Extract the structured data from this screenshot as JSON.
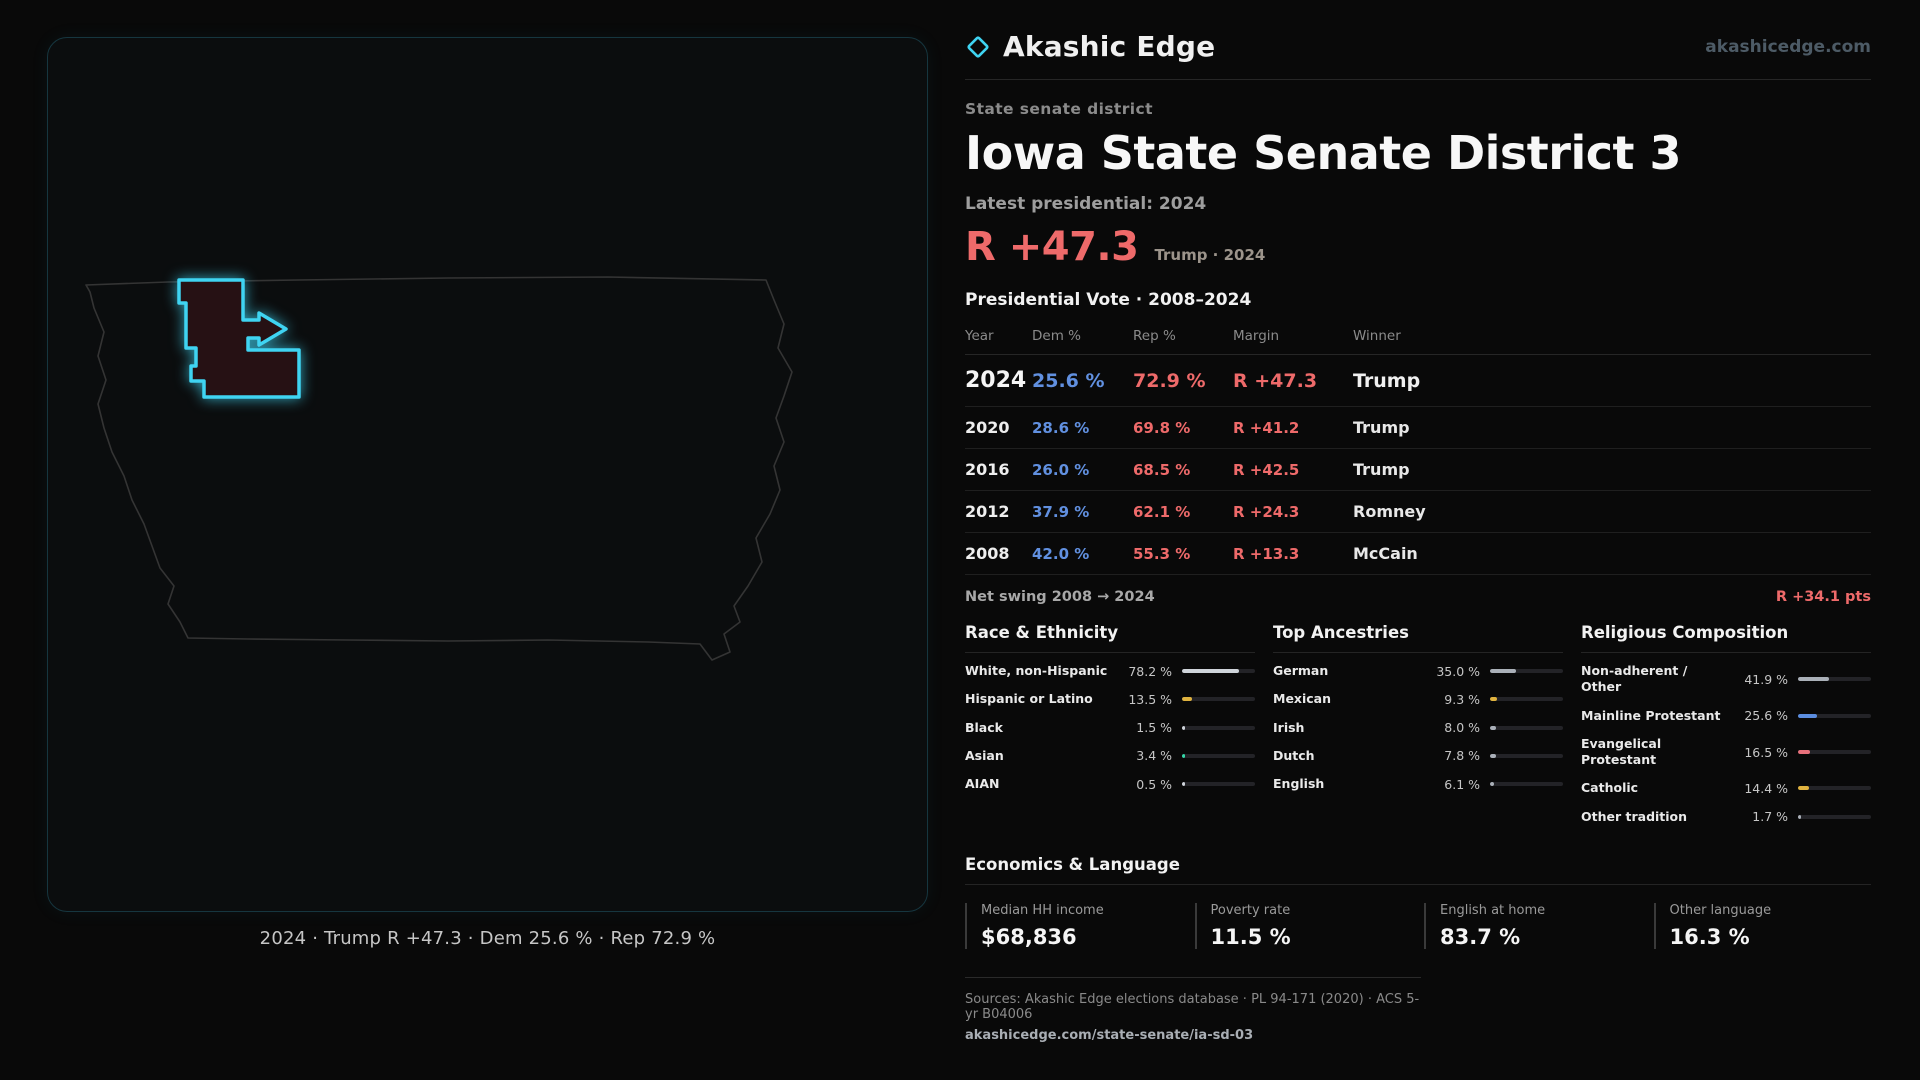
{
  "header": {
    "brand": "Akashic Edge",
    "site": "akashicedge.com"
  },
  "map": {
    "caption": "2024 · Trump R +47.3 · Dem 25.6 % · Rep 72.9 %"
  },
  "district": {
    "kicker": "State senate district",
    "title": "Iowa State Senate District 3",
    "latest_label": "Latest presidential: 2024",
    "margin_big": "R +47.3",
    "margin_sub": "Trump · 2024"
  },
  "table": {
    "title": "Presidential Vote · 2008–2024",
    "headers": {
      "year": "Year",
      "dem": "Dem %",
      "rep": "Rep %",
      "margin": "Margin",
      "winner": "Winner"
    },
    "rows": [
      {
        "year": "2024",
        "dem": "25.6 %",
        "rep": "72.9 %",
        "margin": "R +47.3",
        "winner": "Trump"
      },
      {
        "year": "2020",
        "dem": "28.6 %",
        "rep": "69.8 %",
        "margin": "R +41.2",
        "winner": "Trump"
      },
      {
        "year": "2016",
        "dem": "26.0 %",
        "rep": "68.5 %",
        "margin": "R +42.5",
        "winner": "Trump"
      },
      {
        "year": "2012",
        "dem": "37.9 %",
        "rep": "62.1 %",
        "margin": "R +24.3",
        "winner": "Romney"
      },
      {
        "year": "2008",
        "dem": "42.0 %",
        "rep": "55.3 %",
        "margin": "R +13.3",
        "winner": "McCain"
      }
    ],
    "net_swing_label": "Net swing 2008 → 2024",
    "net_swing_value": "R +34.1 pts"
  },
  "demographics": {
    "race": {
      "title": "Race & Ethnicity",
      "rows": [
        {
          "label": "White, non-Hispanic",
          "value": "78.2 %",
          "pct": 78.2,
          "color": "#cfd4da"
        },
        {
          "label": "Hispanic or Latino",
          "value": "13.5 %",
          "pct": 13.5,
          "color": "#e0b33f"
        },
        {
          "label": "Black",
          "value": "1.5 %",
          "pct": 1.5,
          "color": "#cfd4da"
        },
        {
          "label": "Asian",
          "value": "3.4 %",
          "pct": 3.4,
          "color": "#35d8a8"
        },
        {
          "label": "AIAN",
          "value": "0.5 %",
          "pct": 0.5,
          "color": "#cfd4da"
        }
      ]
    },
    "ancestries": {
      "title": "Top Ancestries",
      "rows": [
        {
          "label": "German",
          "value": "35.0 %",
          "pct": 35.0,
          "color": "#aab0b8"
        },
        {
          "label": "Mexican",
          "value": "9.3 %",
          "pct": 9.3,
          "color": "#e0b33f"
        },
        {
          "label": "Irish",
          "value": "8.0 %",
          "pct": 8.0,
          "color": "#aab0b8"
        },
        {
          "label": "Dutch",
          "value": "7.8 %",
          "pct": 7.8,
          "color": "#aab0b8"
        },
        {
          "label": "English",
          "value": "6.1 %",
          "pct": 6.1,
          "color": "#aab0b8"
        }
      ]
    },
    "religion": {
      "title": "Religious Composition",
      "rows": [
        {
          "label": "Non-adherent / Other",
          "value": "41.9 %",
          "pct": 41.9,
          "color": "#aab0b8"
        },
        {
          "label": "Mainline Protestant",
          "value": "25.6 %",
          "pct": 25.6,
          "color": "#5b8de0"
        },
        {
          "label": "Evangelical Protestant",
          "value": "16.5 %",
          "pct": 16.5,
          "color": "#e8717c"
        },
        {
          "label": "Catholic",
          "value": "14.4 %",
          "pct": 14.4,
          "color": "#e0b33f"
        },
        {
          "label": "Other tradition",
          "value": "1.7 %",
          "pct": 1.7,
          "color": "#aab0b8"
        }
      ]
    }
  },
  "economics": {
    "title": "Economics & Language",
    "stats": [
      {
        "label": "Median HH income",
        "value": "$68,836"
      },
      {
        "label": "Poverty rate",
        "value": "11.5 %"
      },
      {
        "label": "English at home",
        "value": "83.7 %"
      },
      {
        "label": "Other language",
        "value": "16.3 %"
      }
    ]
  },
  "footer": {
    "sources": "Sources: Akashic Edge elections database · PL 94-171 (2020) · ACS 5-yr B04006",
    "permalink": "akashicedge.com/state-senate/ia-sd-03"
  },
  "colors": {
    "accent_cyan": "#3fd4f2",
    "rep_red": "#ee6a6a",
    "dem_blue": "#6190e0"
  }
}
